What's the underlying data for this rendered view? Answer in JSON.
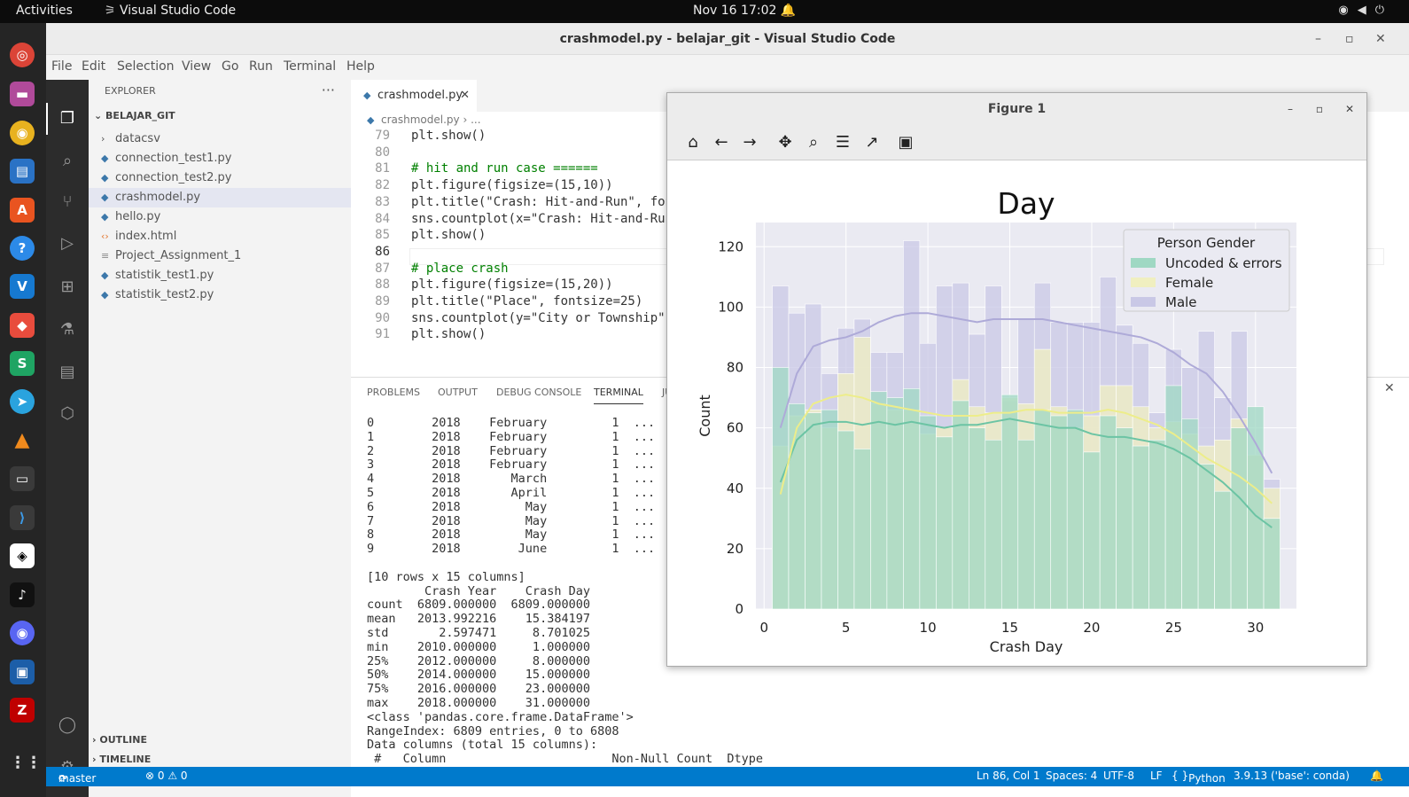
{
  "topbar": {
    "activities": "Activities",
    "app": "Visual Studio Code",
    "clock": "Nov 16  17:02"
  },
  "window": {
    "title": "crashmodel.py - belajar_git - Visual Studio Code"
  },
  "menu": [
    "File",
    "Edit",
    "Selection",
    "View",
    "Go",
    "Run",
    "Terminal",
    "Help"
  ],
  "explorer": {
    "header": "EXPLORER",
    "more": "···",
    "root": "BELAJAR_GIT",
    "items": [
      {
        "name": "datacsv",
        "kind": "folder"
      },
      {
        "name": "connection_test1.py",
        "kind": "py"
      },
      {
        "name": "connection_test2.py",
        "kind": "py"
      },
      {
        "name": "crashmodel.py",
        "kind": "py",
        "selected": true
      },
      {
        "name": "hello.py",
        "kind": "py"
      },
      {
        "name": "index.html",
        "kind": "html"
      },
      {
        "name": "Project_Assignment_1",
        "kind": "txt"
      },
      {
        "name": "statistik_test1.py",
        "kind": "py"
      },
      {
        "name": "statistik_test2.py",
        "kind": "py"
      }
    ],
    "outline": "OUTLINE",
    "timeline": "TIMELINE"
  },
  "editor": {
    "tab": "crashmodel.py",
    "breadcrumb": "crashmodel.py › ...",
    "lines": [
      {
        "n": "79",
        "t": "plt.show()"
      },
      {
        "n": "80",
        "t": ""
      },
      {
        "n": "81",
        "t": "# hit and run case ======"
      },
      {
        "n": "82",
        "t": "plt.figure(figsize=(15,10))"
      },
      {
        "n": "83",
        "t": "plt.title(\"Crash: Hit-and-Run\", fon"
      },
      {
        "n": "84",
        "t": "sns.countplot(x=\"Crash: Hit-and-Run"
      },
      {
        "n": "85",
        "t": "plt.show()"
      },
      {
        "n": "86",
        "t": ""
      },
      {
        "n": "87",
        "t": "# place crash"
      },
      {
        "n": "88",
        "t": "plt.figure(figsize=(15,20))"
      },
      {
        "n": "89",
        "t": "plt.title(\"Place\", fontsize=25)"
      },
      {
        "n": "90",
        "t": "sns.countplot(y=\"City or Township\","
      },
      {
        "n": "91",
        "t": "plt.show()"
      }
    ],
    "current_line": "86"
  },
  "panel": {
    "tabs": [
      "PROBLEMS",
      "OUTPUT",
      "DEBUG CONSOLE",
      "TERMINAL",
      "JU"
    ],
    "active": "TERMINAL",
    "terminal": [
      "0        2018    February         1  ...",
      "1        2018    February         1  ...",
      "2        2018    February         1  ...",
      "3        2018    February         1  ...",
      "4        2018       March         1  ...",
      "5        2018       April         1  ...",
      "6        2018         May         1  ...",
      "7        2018         May         1  ...",
      "8        2018         May         1  ...",
      "9        2018        June         1  ...",
      "",
      "[10 rows x 15 columns]",
      "        Crash Year    Crash Day",
      "count  6809.000000  6809.000000",
      "mean   2013.992216    15.384197",
      "std       2.597471     8.701025",
      "min    2010.000000     1.000000",
      "25%    2012.000000     8.000000",
      "50%    2014.000000    15.000000",
      "75%    2016.000000    23.000000",
      "max    2018.000000    31.000000",
      "<class 'pandas.core.frame.DataFrame'>",
      "RangeIndex: 6809 entries, 0 to 6808",
      "Data columns (total 15 columns):",
      " #   Column                       Non-Null Count  Dtype ",
      "---  ------                       --------------  ----- "
    ]
  },
  "status": {
    "branch": "master",
    "errors": "⊗ 0 ⚠ 0",
    "position": "Ln 86, Col 1",
    "spaces": "Spaces: 4",
    "encoding": "UTF-8",
    "eol": "LF",
    "lang": "Python",
    "interp": "3.9.13 ('base': conda)"
  },
  "figure": {
    "title": "Figure 1"
  },
  "colors": {
    "uncoded": "#9fd8c3",
    "female": "#f0efc0",
    "male": "#c9c8e6",
    "plotbg": "#eaeaf2",
    "statusbar": "#007acc"
  },
  "chart_data": {
    "type": "bar",
    "title": "Day",
    "xlabel": "Crash Day",
    "ylabel": "Count",
    "ylim": [
      0,
      128
    ],
    "xlim": [
      -0.5,
      32.5
    ],
    "xticks": [
      0,
      5,
      10,
      15,
      20,
      25,
      30
    ],
    "yticks": [
      0,
      20,
      40,
      60,
      80,
      100,
      120
    ],
    "legend_title": "Person Gender",
    "legend_position": "top-right",
    "stacked": "overlay",
    "categories": [
      1,
      2,
      3,
      4,
      5,
      6,
      7,
      8,
      9,
      10,
      11,
      12,
      13,
      14,
      15,
      16,
      17,
      18,
      19,
      20,
      21,
      22,
      23,
      24,
      25,
      26,
      27,
      28,
      29,
      30,
      31
    ],
    "series": [
      {
        "name": "Uncoded & errors",
        "values": [
          80,
          68,
          65,
          66,
          59,
          53,
          72,
          70,
          73,
          64,
          57,
          69,
          60,
          56,
          71,
          56,
          66,
          64,
          66,
          52,
          64,
          60,
          54,
          56,
          74,
          63,
          48,
          39,
          60,
          67,
          30
        ]
      },
      {
        "name": "Female",
        "values": [
          54,
          64,
          66,
          60,
          78,
          90,
          68,
          66,
          66,
          58,
          60,
          76,
          67,
          65,
          70,
          68,
          86,
          67,
          60,
          64,
          74,
          74,
          67,
          60,
          62,
          58,
          54,
          56,
          63,
          51,
          40
        ]
      },
      {
        "name": "Male",
        "values": [
          107,
          98,
          101,
          78,
          93,
          96,
          85,
          85,
          122,
          88,
          107,
          108,
          91,
          107,
          69,
          96,
          108,
          95,
          95,
          95,
          110,
          94,
          88,
          65,
          86,
          80,
          92,
          70,
          92,
          51,
          43
        ]
      }
    ],
    "kde": {
      "uncoded": [
        42,
        56,
        61,
        62,
        62,
        61,
        62,
        61,
        62,
        61,
        60,
        61,
        61,
        62,
        63,
        62,
        61,
        60,
        60,
        58,
        57,
        57,
        56,
        55,
        53,
        50,
        46,
        42,
        37,
        31,
        27
      ],
      "female": [
        38,
        60,
        68,
        70,
        71,
        70,
        68,
        67,
        66,
        65,
        64,
        64,
        64,
        65,
        65,
        66,
        66,
        65,
        65,
        65,
        66,
        65,
        63,
        61,
        58,
        54,
        50,
        47,
        44,
        40,
        35
      ],
      "male": [
        60,
        78,
        87,
        89,
        90,
        92,
        95,
        97,
        98,
        98,
        97,
        96,
        95,
        96,
        96,
        96,
        96,
        95,
        94,
        93,
        92,
        91,
        90,
        88,
        85,
        81,
        78,
        72,
        64,
        55,
        45
      ]
    }
  }
}
